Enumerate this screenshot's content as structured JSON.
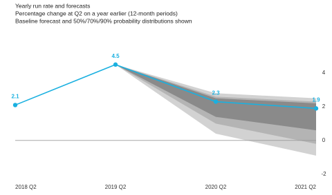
{
  "chart_data": {
    "type": "fan",
    "title": "Yearly run rate and forecasts",
    "subtitle": "Percentage change at Q2 on a year earlier (12-month periods)",
    "note": "Baseline forecast and 50%/70%/90% probability distributions shown",
    "categories": [
      "2018 Q2",
      "2019 Q2",
      "2020 Q2",
      "2021 Q2"
    ],
    "values": [
      2.1,
      4.5,
      2.3,
      1.9
    ],
    "color": "#1ab0e0",
    "bands": [
      {
        "color": "#d2d2d2",
        "lower": [
          null,
          4.5,
          0.4,
          -0.9
        ],
        "upper": [
          null,
          4.5,
          2.8,
          2.5
        ]
      },
      {
        "color": "#b4b4b4",
        "lower": [
          null,
          4.5,
          1.0,
          -0.2
        ],
        "upper": [
          null,
          4.5,
          2.6,
          2.3
        ]
      },
      {
        "color": "#8a8a8a",
        "lower": [
          null,
          4.5,
          1.4,
          0.6
        ],
        "upper": [
          null,
          4.5,
          2.5,
          2.2
        ]
      }
    ],
    "ylim": [
      -2.5,
      6
    ],
    "yticks": [
      -2,
      0,
      2,
      4
    ]
  }
}
